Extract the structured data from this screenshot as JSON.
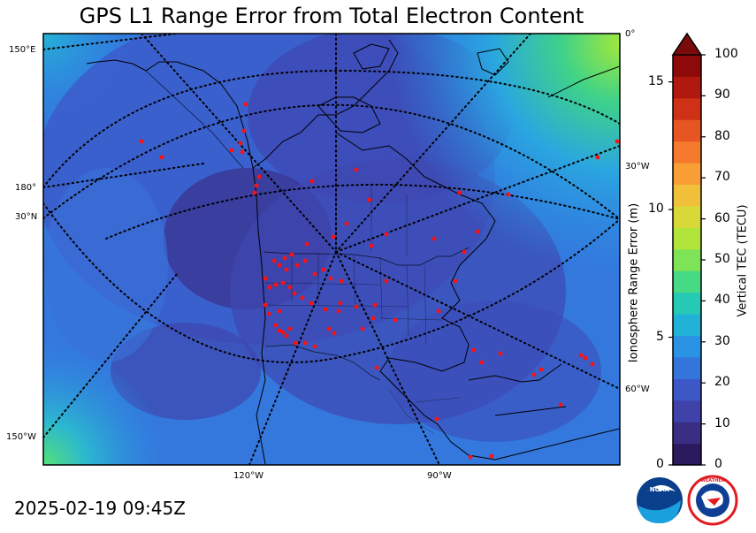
{
  "title": "GPS L1 Range Error from Total Electron Content",
  "timestamp": "2025-02-19 09:45Z",
  "map": {
    "graticule_labels": {
      "left": [
        "150°E",
        "180°",
        "30°N",
        "150°W"
      ],
      "right": [
        "0°",
        "30°W",
        "60°W"
      ],
      "bottom": [
        "120°W",
        "90°W"
      ]
    },
    "layers": [
      "tec-contour-field",
      "coastlines",
      "country-borders",
      "state-borders",
      "graticule",
      "gps-stations"
    ]
  },
  "colorbar": {
    "tec_label": "Vertical TEC (TECU)",
    "tec_ticks": [
      "0",
      "10",
      "20",
      "30",
      "40",
      "50",
      "60",
      "70",
      "80",
      "90",
      "100"
    ],
    "range_label": "Ionosphere Range Error (m)",
    "range_ticks": [
      "0",
      "5",
      "10",
      "15"
    ],
    "colors": [
      "#2c1a5e",
      "#3a2e84",
      "#3f42a9",
      "#3c58c7",
      "#3475dc",
      "#2a93e6",
      "#22b2d8",
      "#26c9b4",
      "#47da84",
      "#7ee356",
      "#b2e53c",
      "#d8d938",
      "#f0c03a",
      "#f99f36",
      "#f57a2e",
      "#e65522",
      "#cf3117",
      "#b1180f",
      "#8e0a0a"
    ],
    "extend_color": "#7a0b0b"
  },
  "logos": {
    "left": "noaa-logo",
    "right": "nws-logo"
  }
}
